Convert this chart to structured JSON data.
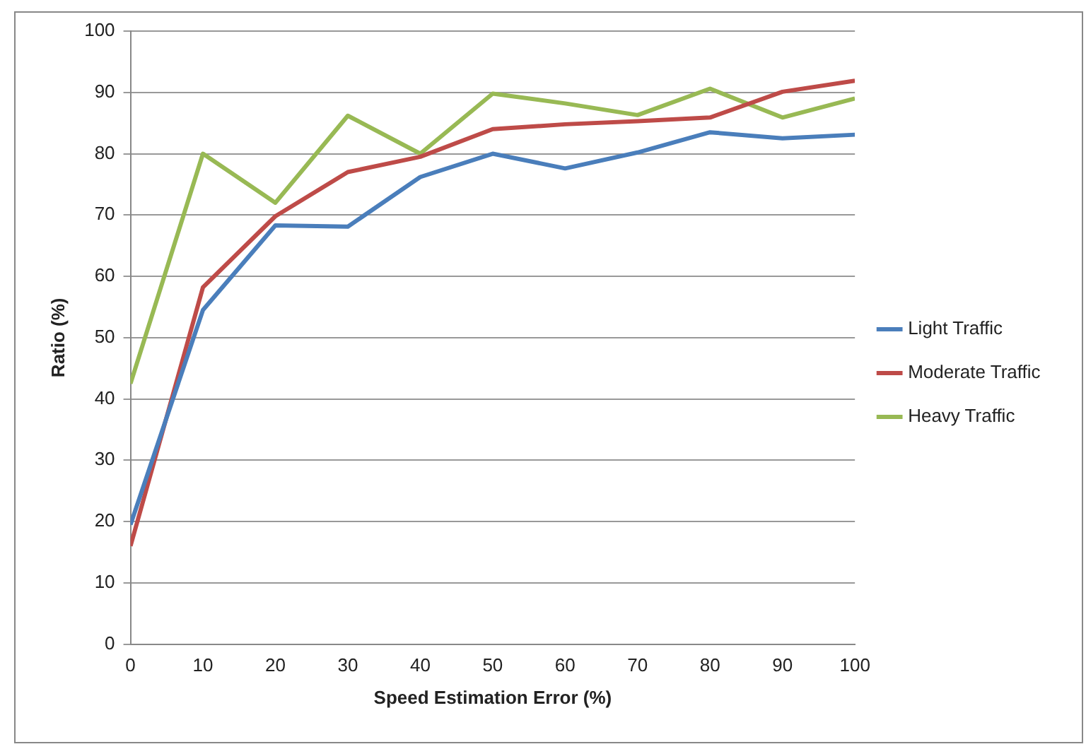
{
  "chart_data": {
    "type": "line",
    "xlabel": "Speed Estimation Error (%)",
    "ylabel": "Ratio (%)",
    "x": [
      0,
      10,
      20,
      30,
      40,
      50,
      60,
      70,
      80,
      90,
      100
    ],
    "series": [
      {
        "name": "Light Traffic",
        "color": "#4a7ebb",
        "values": [
          19.5,
          54.5,
          68.3,
          68.1,
          76.2,
          80,
          77.6,
          80.2,
          83.5,
          82.5,
          83.1
        ]
      },
      {
        "name": "Moderate Traffic",
        "color": "#be4b48",
        "values": [
          16,
          58.2,
          69.8,
          77,
          79.5,
          84,
          84.8,
          85.3,
          85.9,
          90.1,
          91.9
        ]
      },
      {
        "name": "Heavy Traffic",
        "color": "#98b954",
        "values": [
          42.5,
          80,
          72,
          86.2,
          80,
          89.8,
          88.2,
          86.3,
          90.6,
          85.9,
          89
        ]
      }
    ],
    "xlim": [
      0,
      100
    ],
    "xticks": [
      0,
      10,
      20,
      30,
      40,
      50,
      60,
      70,
      80,
      90,
      100
    ],
    "ylim": [
      0,
      100
    ],
    "yticks": [
      0,
      10,
      20,
      30,
      40,
      50,
      60,
      70,
      80,
      90,
      100
    ],
    "grid": "y",
    "legend": "right",
    "marker": "none",
    "line_style": "solid"
  }
}
